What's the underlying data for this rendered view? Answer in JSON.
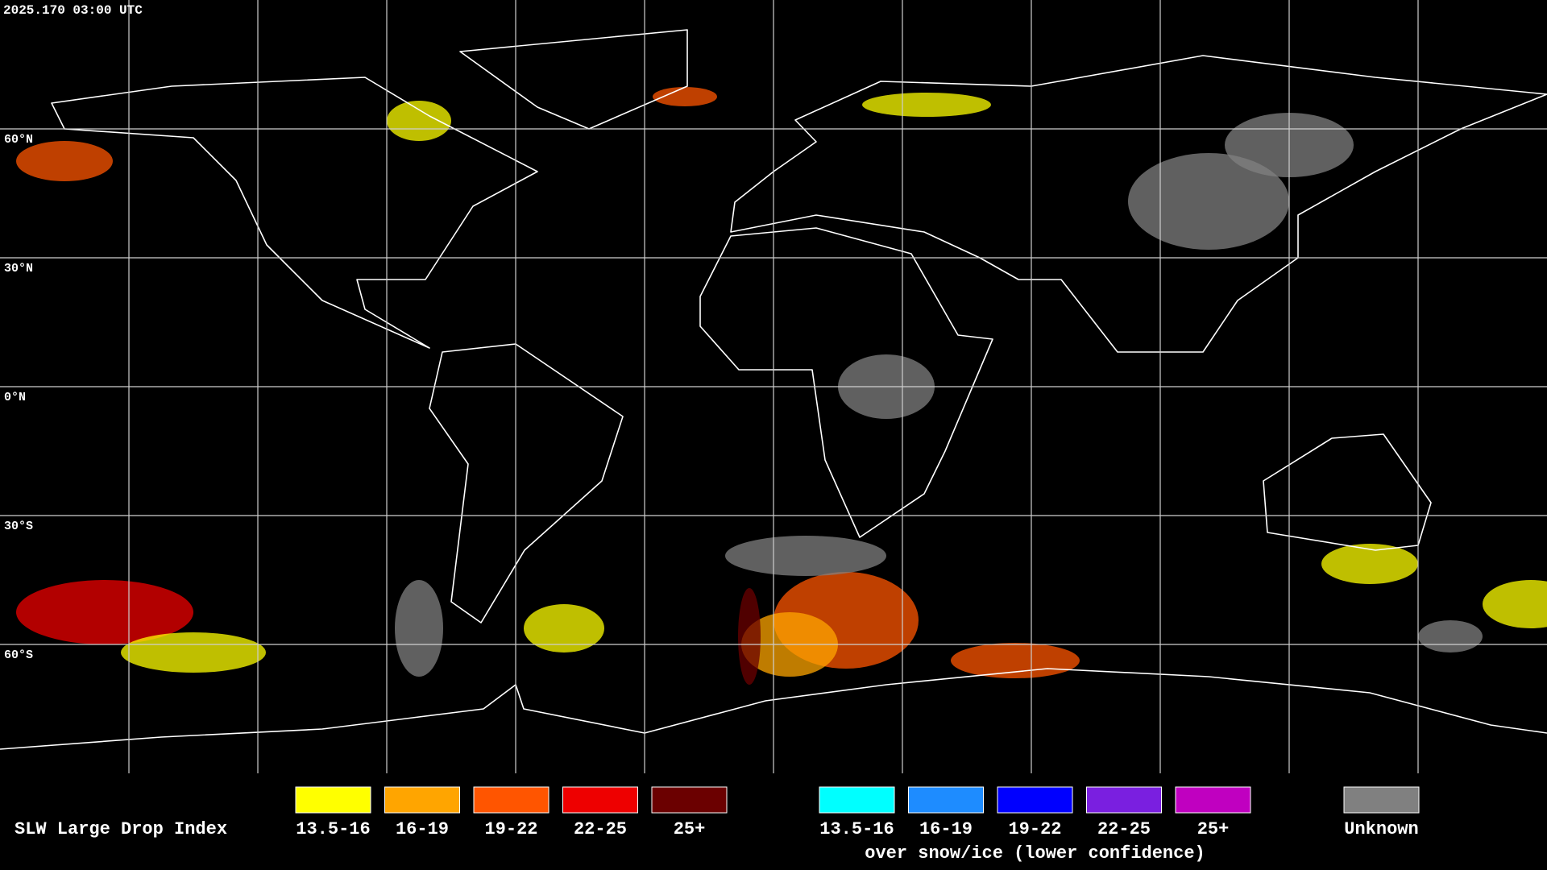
{
  "timestamp": "2025.170 03:00 UTC",
  "latitude_labels": [
    "60°N",
    "30°N",
    "0°N",
    "30°S",
    "60°S"
  ],
  "legend": {
    "title": "SLW Large Drop Index",
    "groups": [
      {
        "items": [
          {
            "label": "13.5-16",
            "color": "#ffff00"
          },
          {
            "label": "16-19",
            "color": "#ffa500"
          },
          {
            "label": "19-22",
            "color": "#ff5500"
          },
          {
            "label": "22-25",
            "color": "#ee0000"
          },
          {
            "label": "25+",
            "color": "#6b0000"
          }
        ]
      },
      {
        "items": [
          {
            "label": "13.5-16",
            "color": "#00ffff"
          },
          {
            "label": "16-19",
            "color": "#1e8cff"
          },
          {
            "label": "19-22",
            "color": "#0000ff"
          },
          {
            "label": "22-25",
            "color": "#7a1fe0"
          },
          {
            "label": "25+",
            "color": "#c000c0"
          }
        ],
        "note": "over snow/ice (lower confidence)"
      },
      {
        "items": [
          {
            "label": "Unknown",
            "color": "#808080"
          }
        ]
      }
    ]
  }
}
